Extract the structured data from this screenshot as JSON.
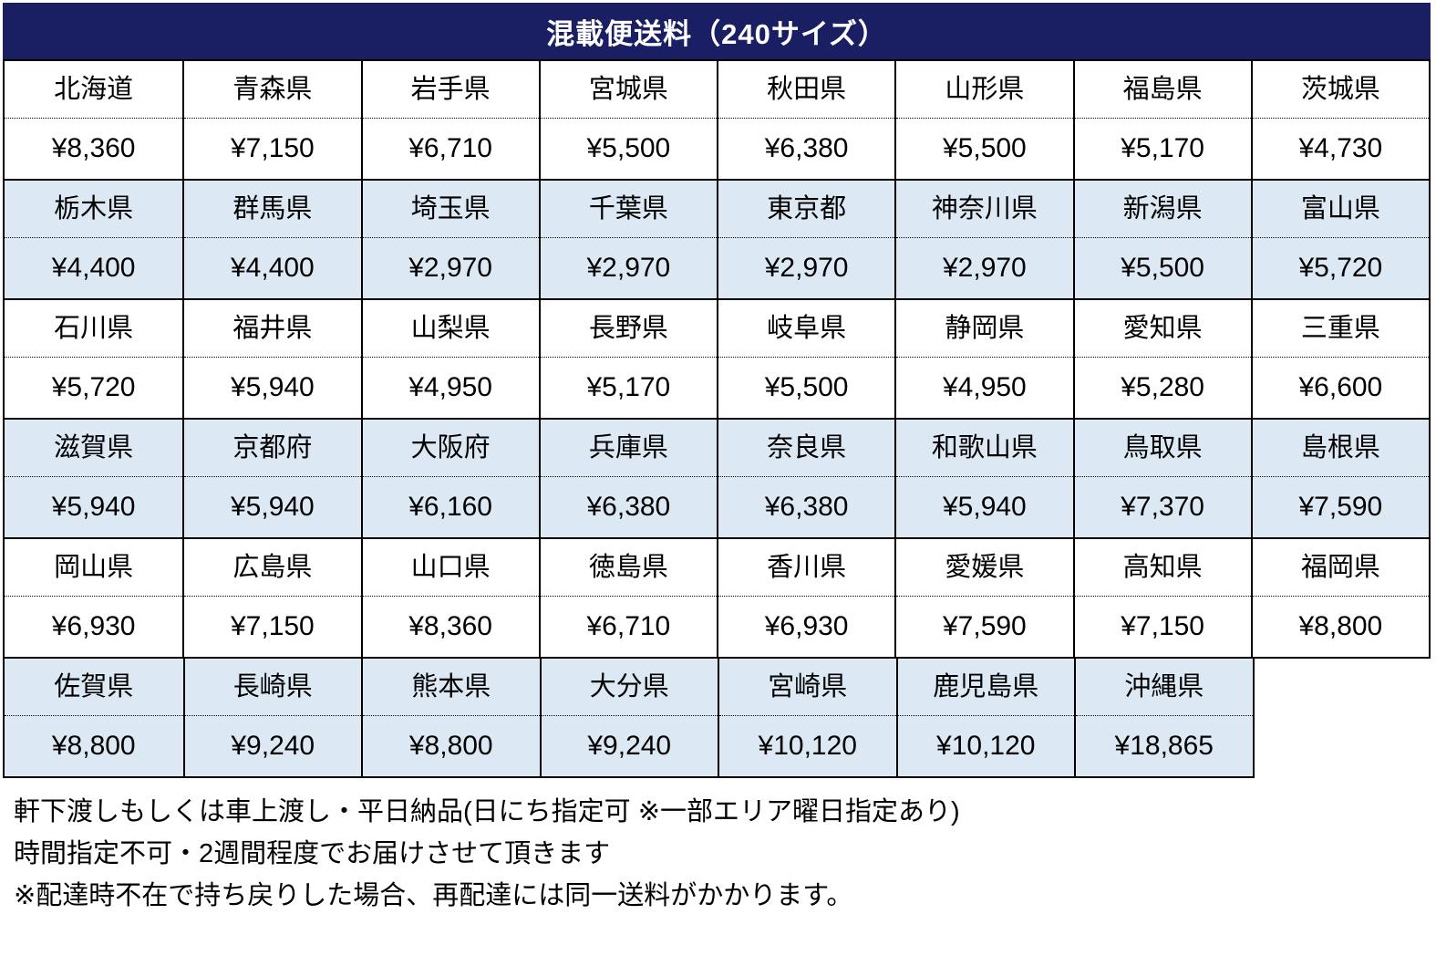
{
  "title": "混載便送料（240サイズ）",
  "colors": {
    "title_bar_bg": "#1a1f63",
    "title_text": "#ffffff",
    "band_blue": "#dce9f5",
    "band_white": "#ffffff",
    "border": "#000000"
  },
  "table": {
    "bands": [
      {
        "bg": "white",
        "cells": [
          {
            "name": "北海道",
            "price": "¥8,360"
          },
          {
            "name": "青森県",
            "price": "¥7,150"
          },
          {
            "name": "岩手県",
            "price": "¥6,710"
          },
          {
            "name": "宮城県",
            "price": "¥5,500"
          },
          {
            "name": "秋田県",
            "price": "¥6,380"
          },
          {
            "name": "山形県",
            "price": "¥5,500"
          },
          {
            "name": "福島県",
            "price": "¥5,170"
          },
          {
            "name": "茨城県",
            "price": "¥4,730"
          }
        ]
      },
      {
        "bg": "blue",
        "cells": [
          {
            "name": "栃木県",
            "price": "¥4,400"
          },
          {
            "name": "群馬県",
            "price": "¥4,400"
          },
          {
            "name": "埼玉県",
            "price": "¥2,970"
          },
          {
            "name": "千葉県",
            "price": "¥2,970"
          },
          {
            "name": "東京都",
            "price": "¥2,970"
          },
          {
            "name": "神奈川県",
            "price": "¥2,970"
          },
          {
            "name": "新潟県",
            "price": "¥5,500"
          },
          {
            "name": "富山県",
            "price": "¥5,720"
          }
        ]
      },
      {
        "bg": "white",
        "cells": [
          {
            "name": "石川県",
            "price": "¥5,720"
          },
          {
            "name": "福井県",
            "price": "¥5,940"
          },
          {
            "name": "山梨県",
            "price": "¥4,950"
          },
          {
            "name": "長野県",
            "price": "¥5,170"
          },
          {
            "name": "岐阜県",
            "price": "¥5,500"
          },
          {
            "name": "静岡県",
            "price": "¥4,950"
          },
          {
            "name": "愛知県",
            "price": "¥5,280"
          },
          {
            "name": "三重県",
            "price": "¥6,600"
          }
        ]
      },
      {
        "bg": "blue",
        "cells": [
          {
            "name": "滋賀県",
            "price": "¥5,940"
          },
          {
            "name": "京都府",
            "price": "¥5,940"
          },
          {
            "name": "大阪府",
            "price": "¥6,160"
          },
          {
            "name": "兵庫県",
            "price": "¥6,380"
          },
          {
            "name": "奈良県",
            "price": "¥6,380"
          },
          {
            "name": "和歌山県",
            "price": "¥5,940"
          },
          {
            "name": "鳥取県",
            "price": "¥7,370"
          },
          {
            "name": "島根県",
            "price": "¥7,590"
          }
        ]
      },
      {
        "bg": "white",
        "cells": [
          {
            "name": "岡山県",
            "price": "¥6,930"
          },
          {
            "name": "広島県",
            "price": "¥7,150"
          },
          {
            "name": "山口県",
            "price": "¥8,360"
          },
          {
            "name": "徳島県",
            "price": "¥6,710"
          },
          {
            "name": "香川県",
            "price": "¥6,930"
          },
          {
            "name": "愛媛県",
            "price": "¥7,590"
          },
          {
            "name": "高知県",
            "price": "¥7,150"
          },
          {
            "name": "福岡県",
            "price": "¥8,800"
          }
        ]
      },
      {
        "bg": "blue",
        "cells": [
          {
            "name": "佐賀県",
            "price": "¥8,800"
          },
          {
            "name": "長崎県",
            "price": "¥9,240"
          },
          {
            "name": "熊本県",
            "price": "¥8,800"
          },
          {
            "name": "大分県",
            "price": "¥9,240"
          },
          {
            "name": "宮崎県",
            "price": "¥10,120"
          },
          {
            "name": "鹿児島県",
            "price": "¥10,120"
          },
          {
            "name": "沖縄県",
            "price": "¥18,865"
          }
        ]
      }
    ]
  },
  "footer": {
    "line1": "軒下渡しもしくは車上渡し・平日納品(日にち指定可 ※一部エリア曜日指定あり)",
    "line2": "時間指定不可・2週間程度でお届けさせて頂きます",
    "line3": "※配達時不在で持ち戻りした場合、再配達には同一送料がかかります。"
  }
}
